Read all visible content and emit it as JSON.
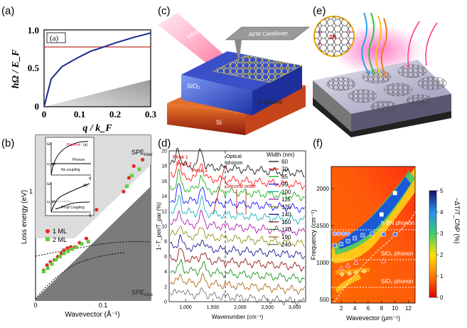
{
  "panels": {
    "a": {
      "label": "(a)",
      "inset_label": "(a)",
      "ylabel": "ħΩ / E_F",
      "xlabel": "q / k_F",
      "xticks": [
        "0",
        "0.1",
        "0.2",
        "0.3"
      ],
      "yticks": [
        "0",
        "0.5",
        "1.0"
      ]
    },
    "b": {
      "label": "(b)",
      "ylabel": "Loss energy (eV)",
      "xlabel": "Wavevector (Å⁻¹)",
      "xticks": [
        "0",
        "0.1"
      ],
      "yticks": [
        "1"
      ],
      "spe_inter": "SPE",
      "spe_inter_sub": "inter",
      "spe_intra": "SPE",
      "spe_intra_sub": "intra",
      "legend": [
        "1 ML",
        "2 ML"
      ],
      "inset_top": {
        "tag": "(a)",
        "plasmon": "Plasmon",
        "phonon": "Phonon",
        "coupling": "No coupling",
        "omega": "ω",
        "omega_ph": "ω_ph",
        "q": "q"
      },
      "inset_bottom": {
        "tag": "(b)",
        "coupling": "Ph-pl Coupling",
        "omega": "ω",
        "omega_ph": "ω_ph",
        "q": "q"
      }
    },
    "c": {
      "label": "(c)",
      "infrared": "Infrared light",
      "afm": "AFM Cantilever",
      "sio2": "SiO₂",
      "graphene": "Graphene",
      "si": "Si"
    },
    "d": {
      "label": "(d)",
      "ylabel": "1−T_per/T_par (%)",
      "xlabel": "Wavenumber (cm⁻¹)",
      "xticks": [
        "1,000",
        "1,500",
        "2,000",
        "2,500",
        "3,000"
      ],
      "yticks": [
        "0",
        "2",
        "4",
        "6",
        "8",
        "10",
        "12",
        "14",
        "16",
        "18",
        "20"
      ],
      "peak1": "Peak 1",
      "peak2": "Peak 2",
      "peak3": "Peak 3",
      "optical": "Optical",
      "phonon": "phonon",
      "second": "Second order",
      "legend_title": "Width (nm)",
      "widths": [
        "60",
        "70",
        "85",
        "95",
        "100",
        "115",
        "125",
        "140",
        "150",
        "170",
        "190",
        "240"
      ],
      "colors": [
        "#000000",
        "#ff0000",
        "#00aa00",
        "#0000ff",
        "#00aaaa",
        "#aa00aa",
        "#888800",
        "#000088",
        "#880000",
        "#008800",
        "#aa5500",
        "#666666"
      ]
    },
    "e": {
      "label": "(e)",
      "sio2": "SiO₂",
      "si": "Si",
      "period": "2R"
    },
    "f": {
      "label": "(f)",
      "ylabel": "Frequency (cm⁻¹)",
      "xlabel": "Wavevector (μm⁻¹)",
      "xticks": [
        "2",
        "4",
        "6",
        "8",
        "10",
        "12"
      ],
      "yticks": [
        "500",
        "1000",
        "1500",
        "2000"
      ],
      "colorbar_label": "−ΔT/T_CNP (%)",
      "colorbar_ticks": [
        "0",
        "1",
        "2",
        "3",
        "4",
        "5"
      ],
      "hbn": "h-BN phonon",
      "sio2_1": "SiO₂ phonon",
      "sio2_2": "SiO₂ phonon"
    }
  },
  "chart_data": [
    {
      "type": "line",
      "panel": "a",
      "title": "",
      "xlabel": "q / k_F",
      "ylabel": "ħΩ / E_F",
      "xlim": [
        0,
        0.3
      ],
      "ylim": [
        0,
        1.0
      ],
      "series": [
        {
          "name": "plasmon dispersion",
          "x": [
            0,
            0.02,
            0.05,
            0.08,
            0.1,
            0.13,
            0.15,
            0.2,
            0.25,
            0.3
          ],
          "y": [
            0,
            0.36,
            0.52,
            0.6,
            0.65,
            0.72,
            0.75,
            0.83,
            0.9,
            0.96
          ]
        },
        {
          "name": "phonon level",
          "x": [
            0,
            0.3
          ],
          "y": [
            0.8,
            0.8
          ]
        }
      ]
    },
    {
      "type": "scatter",
      "panel": "b",
      "xlabel": "Wavevector (Å⁻¹)",
      "ylabel": "Loss energy (eV)",
      "xlim": [
        0,
        0.17
      ],
      "ylim": [
        0,
        1.55
      ],
      "series": [
        {
          "name": "1 ML",
          "color": "#e8262a",
          "x": [
            0.012,
            0.017,
            0.022,
            0.028,
            0.033,
            0.038,
            0.042,
            0.047,
            0.052,
            0.058,
            0.065,
            0.075,
            0.09,
            0.13,
            0.138,
            0.145,
            0.158
          ],
          "y": [
            0.28,
            0.33,
            0.36,
            0.38,
            0.41,
            0.44,
            0.47,
            0.49,
            0.5,
            0.5,
            0.54,
            0.58,
            0.85,
            1.02,
            1.15,
            1.26,
            1.32
          ]
        },
        {
          "name": "2 ML",
          "color": "#5fce3c",
          "x": [
            0.012,
            0.018,
            0.024,
            0.03,
            0.036,
            0.042,
            0.048,
            0.054,
            0.06,
            0.068,
            0.078,
            0.135,
            0.142,
            0.153
          ],
          "y": [
            0.27,
            0.3,
            0.34,
            0.38,
            0.41,
            0.44,
            0.46,
            0.48,
            0.5,
            0.53,
            0.55,
            1.07,
            1.17,
            1.23
          ]
        }
      ]
    },
    {
      "type": "line",
      "panel": "d",
      "xlabel": "Wavenumber (cm⁻¹)",
      "ylabel": "1−T_per/T_par (%)",
      "xlim": [
        700,
        3200
      ],
      "ylim": [
        0,
        20
      ],
      "peaks_cm": {
        "peak1": 850,
        "peak2": 900,
        "peak3": 1300,
        "optical_phonon": 1580
      },
      "series_count": 12
    },
    {
      "type": "heatmap",
      "panel": "f",
      "xlabel": "Wavevector (μm⁻¹)",
      "ylabel": "Frequency (cm⁻¹)",
      "xlim": [
        0.5,
        13
      ],
      "ylim": [
        450,
        2300
      ],
      "colorbar_range": [
        0,
        5
      ],
      "phonon_lines_cm": {
        "hbn": 1370,
        "sio2_upper": 1080,
        "sio2_lower": 800
      },
      "points": [
        {
          "x": 1.0,
          "y": 1390
        },
        {
          "x": 1.6,
          "y": 1390
        },
        {
          "x": 2.3,
          "y": 1390
        },
        {
          "x": 3.0,
          "y": 1390
        },
        {
          "x": 1.0,
          "y": 1230
        },
        {
          "x": 2.0,
          "y": 1250
        },
        {
          "x": 3.0,
          "y": 1290
        },
        {
          "x": 4.0,
          "y": 1330
        },
        {
          "x": 5.2,
          "y": 1370
        },
        {
          "x": 6.6,
          "y": 1390
        },
        {
          "x": 8.3,
          "y": 1380
        },
        {
          "x": 10.0,
          "y": 1380
        },
        {
          "x": 8.0,
          "y": 1650
        },
        {
          "x": 10.0,
          "y": 1940
        },
        {
          "x": 2.0,
          "y": 920
        },
        {
          "x": 3.0,
          "y": 960
        },
        {
          "x": 4.2,
          "y": 1000
        },
        {
          "x": 8.3,
          "y": 1020
        },
        {
          "x": 2.1,
          "y": 840
        },
        {
          "x": 3.2,
          "y": 850
        },
        {
          "x": 4.2,
          "y": 860
        },
        {
          "x": 5.4,
          "y": 880
        }
      ]
    }
  ]
}
